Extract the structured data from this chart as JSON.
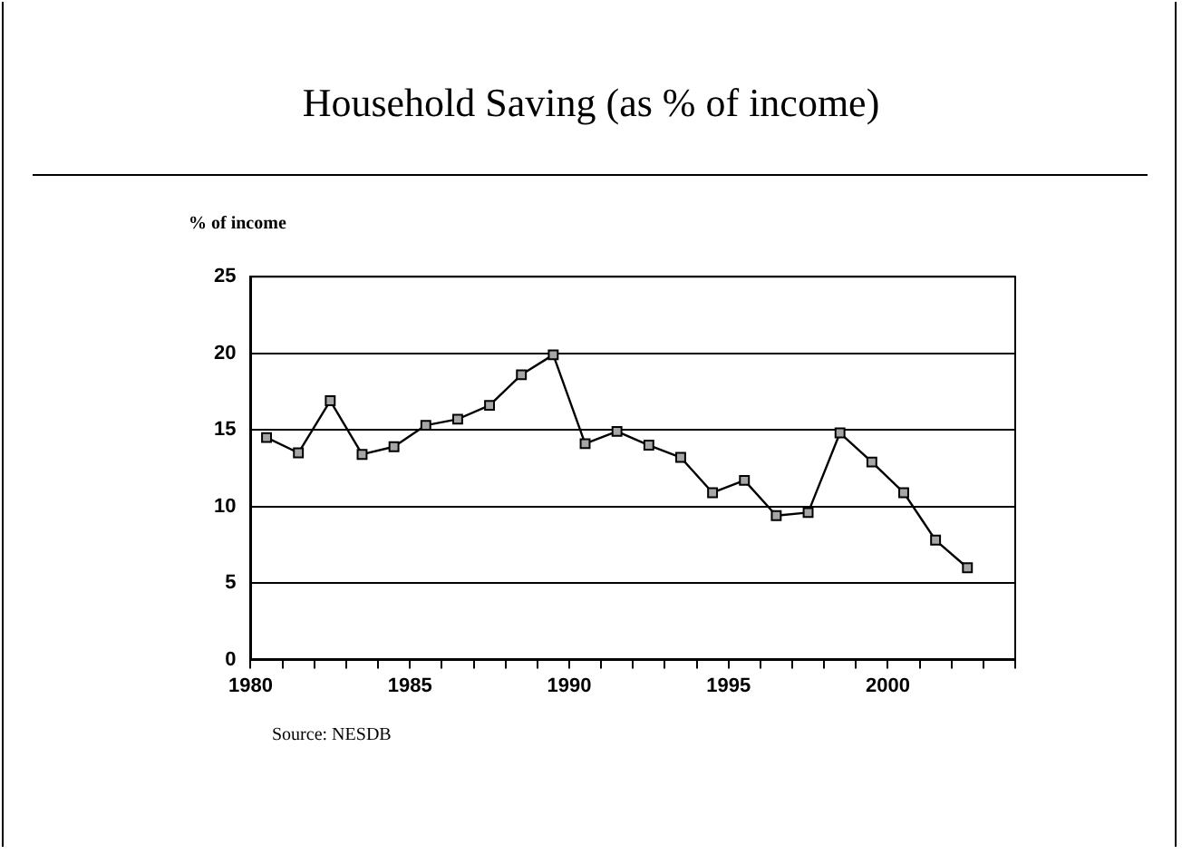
{
  "chart_data": {
    "type": "line",
    "title": "Household Saving (as % of income)",
    "ylabel": "% of income",
    "x": [
      1980.5,
      1981.5,
      1982.5,
      1983.5,
      1984.5,
      1985.5,
      1986.5,
      1987.5,
      1988.5,
      1989.5,
      1990.5,
      1991.5,
      1992.5,
      1993.5,
      1994.5,
      1995.5,
      1996.5,
      1997.5,
      1998.5,
      1999.5,
      2000.5,
      2001.5,
      2002.5
    ],
    "series": [
      {
        "color": "#000000",
        "values": [
          14.5,
          13.5,
          16.9,
          13.4,
          13.9,
          15.3,
          15.7,
          16.6,
          18.6,
          19.9,
          14.1,
          14.9,
          14.0,
          13.2,
          10.9,
          11.7,
          9.4,
          9.6,
          14.8,
          12.9,
          10.9,
          7.8,
          6.0
        ]
      }
    ],
    "xlim": [
      1980,
      2004
    ],
    "xticks": [
      1980,
      {
        "value": 1981,
        "label": null
      },
      {
        "value": 1982,
        "label": null
      },
      {
        "value": 1983,
        "label": null
      },
      {
        "value": 1984,
        "label": null
      },
      1985,
      {
        "value": 1986,
        "label": null
      },
      {
        "value": 1987,
        "label": null
      },
      {
        "value": 1988,
        "label": null
      },
      {
        "value": 1989,
        "label": null
      },
      1990,
      {
        "value": 1991,
        "label": null
      },
      {
        "value": 1992,
        "label": null
      },
      {
        "value": 1993,
        "label": null
      },
      {
        "value": 1994,
        "label": null
      },
      1995,
      {
        "value": 1996,
        "label": null
      },
      {
        "value": 1997,
        "label": null
      },
      {
        "value": 1998,
        "label": null
      },
      {
        "value": 1999,
        "label": null
      },
      2000,
      {
        "value": 2001,
        "label": null
      },
      {
        "value": 2002,
        "label": null
      },
      {
        "value": 2003,
        "label": null
      },
      {
        "value": 2004,
        "label": null
      }
    ],
    "ylim": [
      0,
      25
    ],
    "yticks": [
      0,
      5,
      10,
      15,
      20,
      25
    ],
    "grid": "y",
    "legend": false,
    "marker": "square",
    "line_style": "solid",
    "annotations": [
      "Source: NESDB"
    ]
  }
}
